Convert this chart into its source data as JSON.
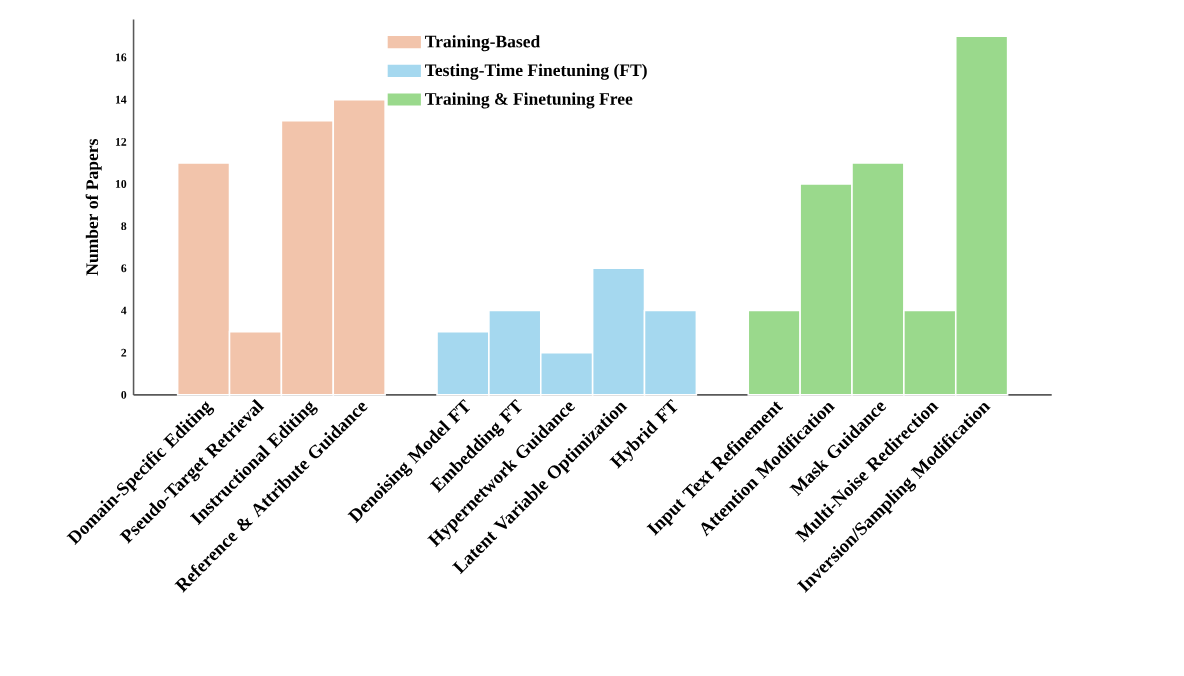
{
  "chart_data": {
    "type": "bar",
    "ylabel": "Number of Papers",
    "categories": [
      "Domain-Specific Editing",
      "Pseudo-Target Retrieval",
      "Instructional Editing",
      "Reference & Attribute Guidance",
      null,
      "Denoising Model FT",
      "Embedding FT",
      "Hypernetwork Guidance",
      "Latent Variable Optimization",
      "Hybrid FT",
      null,
      "Input Text Refinement",
      "Attention Modification",
      "Mask Guidance",
      "Multi-Noise Redirection",
      "Inversion/Sampling Modification"
    ],
    "series": [
      {
        "name": "Training-Based",
        "color": "#f2c4ab",
        "values": [
          11,
          3,
          13,
          14,
          null,
          null,
          null,
          null,
          null,
          null,
          null,
          null,
          null,
          null,
          null,
          null
        ]
      },
      {
        "name": "Testing-Time Finetuning (FT)",
        "color": "#a5d8ef",
        "values": [
          null,
          null,
          null,
          null,
          null,
          3,
          4,
          2,
          6,
          4,
          null,
          null,
          null,
          null,
          null,
          null
        ]
      },
      {
        "name": "Training & Finetuning Free",
        "color": "#9ad98c",
        "values": [
          null,
          null,
          null,
          null,
          null,
          null,
          null,
          null,
          null,
          null,
          null,
          4,
          10,
          11,
          4,
          17
        ]
      }
    ],
    "ylim": [
      0,
      17.8
    ],
    "yticks": [
      0,
      2,
      4,
      6,
      8,
      10,
      12,
      14,
      16
    ],
    "grid": false,
    "legend": "top"
  }
}
